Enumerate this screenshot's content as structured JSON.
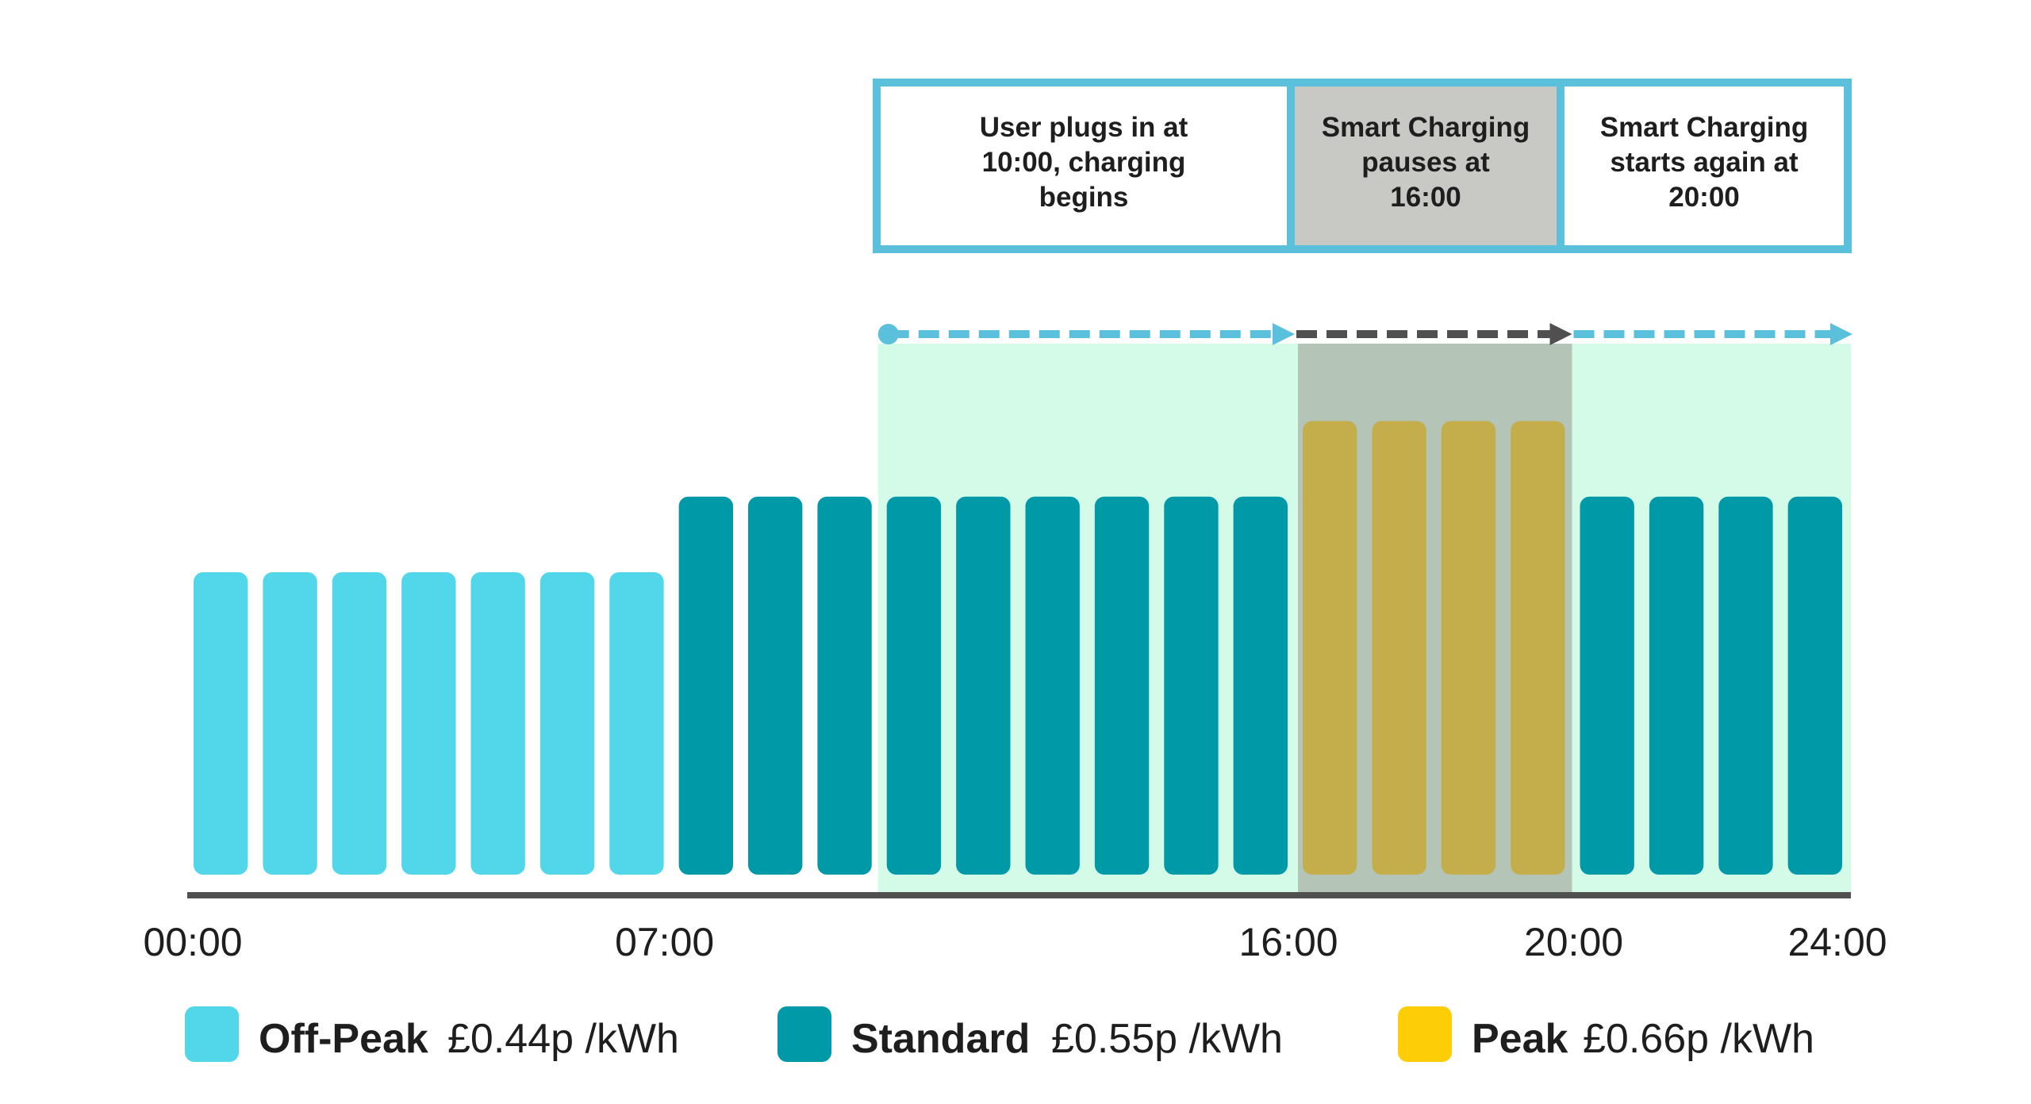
{
  "chart_data": {
    "type": "bar",
    "title": "",
    "xlabel": "",
    "ylabel": "",
    "x_unit": "hour",
    "categories": [
      0,
      1,
      2,
      3,
      4,
      5,
      6,
      7,
      8,
      9,
      10,
      11,
      12,
      13,
      14,
      15,
      16,
      17,
      18,
      19,
      20,
      21,
      22,
      23
    ],
    "values": [
      0.44,
      0.44,
      0.44,
      0.44,
      0.44,
      0.44,
      0.44,
      0.55,
      0.55,
      0.55,
      0.55,
      0.55,
      0.55,
      0.55,
      0.55,
      0.55,
      0.66,
      0.66,
      0.66,
      0.66,
      0.55,
      0.55,
      0.55,
      0.55
    ],
    "tiers": [
      "Off-Peak",
      "Off-Peak",
      "Off-Peak",
      "Off-Peak",
      "Off-Peak",
      "Off-Peak",
      "Off-Peak",
      "Standard",
      "Standard",
      "Standard",
      "Standard",
      "Standard",
      "Standard",
      "Standard",
      "Standard",
      "Standard",
      "Peak",
      "Peak",
      "Peak",
      "Peak",
      "Standard",
      "Standard",
      "Standard",
      "Standard"
    ],
    "xlim": [
      0,
      24
    ],
    "ylim": [
      0,
      0.76
    ],
    "grid": false,
    "x_ticks": [
      {
        "hour": 0,
        "label": "00:00"
      },
      {
        "hour": 7,
        "label": "07:00"
      },
      {
        "hour": 16,
        "label": "16:00"
      },
      {
        "hour": 20,
        "label": "20:00"
      },
      {
        "hour": 24,
        "label": "24:00"
      }
    ],
    "legend": {
      "placement": "bottom",
      "entries": [
        {
          "name": "Off-Peak",
          "price": "£0.44p /kWh",
          "color": "#52d6ea"
        },
        {
          "name": "Standard",
          "price": "£0.55p /kWh",
          "color": "#0099a8"
        },
        {
          "name": "Peak",
          "price": "£0.66p /kWh",
          "color": "#fdcd08"
        }
      ]
    },
    "shaded_regions": [
      {
        "from": 10,
        "to": 24,
        "meaning": "charging window",
        "color": "#d4fbe8"
      },
      {
        "from": 16,
        "to": 20,
        "meaning": "paused",
        "color": "#b4c4b6"
      }
    ],
    "annotations": [
      {
        "from": 10,
        "to": 16,
        "lines": [
          "User plugs in at",
          "10:00, charging",
          "begins"
        ],
        "fill": "#ffffff",
        "arrow_color": "#5bc0dc"
      },
      {
        "from": 16,
        "to": 20,
        "lines": [
          "Smart Charging",
          "pauses at",
          "16:00"
        ],
        "fill": "#c8c8c4",
        "arrow_color": "#505050"
      },
      {
        "from": 20,
        "to": 24,
        "lines": [
          "Smart Charging",
          "starts again at",
          "20:00"
        ],
        "fill": "#ffffff",
        "arrow_color": "#5bc0dc"
      }
    ],
    "colors": {
      "peak_bar_in_shade": "#c4ae4c",
      "axis": "#505050",
      "box_border": "#5bc0dc"
    }
  }
}
